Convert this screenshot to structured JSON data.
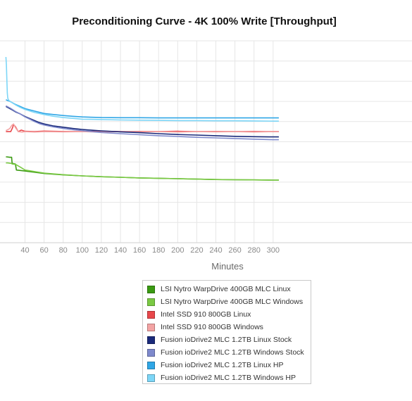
{
  "chart_data": {
    "type": "line",
    "title": "Preconditioning Curve - 4K 100% Write [Throughput]",
    "xlabel": "Minutes",
    "ylabel": "",
    "xlim": [
      20,
      306
    ],
    "ylim": [
      0,
      100
    ],
    "x_ticks": [
      40,
      60,
      80,
      100,
      120,
      140,
      160,
      180,
      200,
      220,
      240,
      260,
      280,
      300
    ],
    "grid": true,
    "legend_position": "bottom",
    "series": [
      {
        "name": "LSI Nytro WarpDrive 400GB MLC Linux",
        "color": "#3a9a12",
        "x": [
          20,
          21,
          24,
          26,
          26.5,
          30,
          31,
          40,
          60,
          80,
          100,
          120,
          140,
          160,
          180,
          200,
          220,
          240,
          260,
          280,
          300,
          306
        ],
        "y": [
          42.5,
          42.5,
          42.3,
          42.3,
          39.3,
          39.0,
          36.0,
          35.5,
          34.3,
          33.6,
          33.1,
          32.7,
          32.4,
          32.1,
          31.9,
          31.7,
          31.5,
          31.3,
          31.2,
          31.1,
          31.0,
          31.0
        ]
      },
      {
        "name": "LSI Nytro WarpDrive 400GB MLC Windows",
        "color": "#7ac943",
        "x": [
          20,
          22,
          25,
          26,
          26.5,
          30,
          35,
          40,
          60,
          80,
          100,
          120,
          140,
          160,
          180,
          200,
          220,
          240,
          260,
          280,
          300,
          306
        ],
        "y": [
          39.5,
          39.5,
          39.3,
          39.3,
          39.0,
          38.8,
          37.5,
          36.0,
          34.5,
          33.7,
          33.1,
          32.7,
          32.4,
          32.1,
          31.9,
          31.7,
          31.5,
          31.3,
          31.2,
          31.1,
          31.0,
          31.0
        ]
      },
      {
        "name": "Intel SSD 910 800GB Linux",
        "color": "#e8474b",
        "x": [
          20,
          25,
          27,
          28,
          30,
          33,
          36,
          40,
          50,
          60,
          80,
          100,
          120,
          140,
          160,
          180,
          200,
          220,
          240,
          260,
          280,
          300,
          306
        ],
        "y": [
          55.0,
          55.0,
          57.0,
          58.5,
          57.5,
          55.0,
          55.8,
          55.2,
          55.0,
          55.3,
          55.1,
          55.0,
          55.2,
          55.0,
          55.1,
          55.0,
          55.2,
          55.0,
          55.1,
          55.0,
          55.1,
          55.0,
          55.0
        ]
      },
      {
        "name": "Intel SSD 910 800GB Windows",
        "color": "#f3a3a3",
        "x": [
          20,
          24,
          26,
          28,
          30,
          33,
          37,
          40,
          50,
          60,
          80,
          100,
          120,
          140,
          160,
          180,
          200,
          220,
          240,
          260,
          280,
          300,
          306
        ],
        "y": [
          55.5,
          56.5,
          58.0,
          58.8,
          57.0,
          55.0,
          54.8,
          55.0,
          54.8,
          55.0,
          54.9,
          55.0,
          54.8,
          55.0,
          54.9,
          55.0,
          54.8,
          55.0,
          54.9,
          55.0,
          54.8,
          55.0,
          55.0
        ]
      },
      {
        "name": "Fusion ioDrive2 MLC 1.2TB Linux Stock",
        "color": "#1a2a7a",
        "x": [
          20,
          25,
          30,
          35,
          40,
          45,
          50,
          55,
          60,
          70,
          80,
          90,
          100,
          110,
          120,
          140,
          160,
          180,
          200,
          220,
          240,
          260,
          280,
          300,
          306
        ],
        "y": [
          67.5,
          66.2,
          64.8,
          63.8,
          62.5,
          61.5,
          60.5,
          59.5,
          58.8,
          57.8,
          57.2,
          56.6,
          56.1,
          55.7,
          55.4,
          54.9,
          54.5,
          54.0,
          53.6,
          53.3,
          53.0,
          52.7,
          52.5,
          52.4,
          52.4
        ]
      },
      {
        "name": "Fusion ioDrive2 MLC 1.2TB Windows Stock",
        "color": "#7e89cc",
        "x": [
          20,
          25,
          30,
          35,
          40,
          45,
          50,
          55,
          60,
          70,
          80,
          90,
          100,
          110,
          120,
          140,
          160,
          180,
          200,
          220,
          240,
          260,
          280,
          300,
          306
        ],
        "y": [
          67.8,
          66.5,
          65.0,
          63.8,
          62.3,
          61.2,
          60.0,
          59.0,
          58.3,
          57.3,
          56.6,
          56.0,
          55.5,
          55.0,
          54.6,
          54.0,
          53.5,
          53.0,
          52.6,
          52.2,
          51.9,
          51.6,
          51.3,
          51.0,
          51.0
        ]
      },
      {
        "name": "Fusion ioDrive2 MLC 1.2TB Linux HP",
        "color": "#2fa6e6",
        "x": [
          20,
          25,
          30,
          35,
          40,
          50,
          60,
          70,
          80,
          90,
          100,
          120,
          140,
          160,
          180,
          200,
          220,
          240,
          260,
          280,
          300,
          306
        ],
        "y": [
          70.8,
          69.8,
          68.5,
          67.5,
          66.4,
          65.2,
          64.0,
          63.5,
          63.0,
          62.6,
          62.3,
          62.0,
          61.9,
          61.9,
          61.8,
          61.8,
          61.8,
          61.8,
          61.8,
          61.8,
          61.8,
          61.8
        ]
      },
      {
        "name": "Fusion ioDrive2 MLC 1.2TB Windows HP",
        "color": "#7dd6f7",
        "x": [
          20,
          20.5,
          21,
          21.5,
          22,
          23,
          25,
          30,
          35,
          40,
          50,
          60,
          70,
          80,
          90,
          100,
          120,
          140,
          160,
          180,
          200,
          220,
          240,
          260,
          280,
          300,
          306
        ],
        "y": [
          92.0,
          88.0,
          80.0,
          74.0,
          71.5,
          70.5,
          69.8,
          68.3,
          67.0,
          66.0,
          64.5,
          63.5,
          62.6,
          62.0,
          61.6,
          61.2,
          61.0,
          60.8,
          60.7,
          60.6,
          60.5,
          60.5,
          60.4,
          60.4,
          60.3,
          60.2,
          60.2
        ]
      }
    ]
  }
}
